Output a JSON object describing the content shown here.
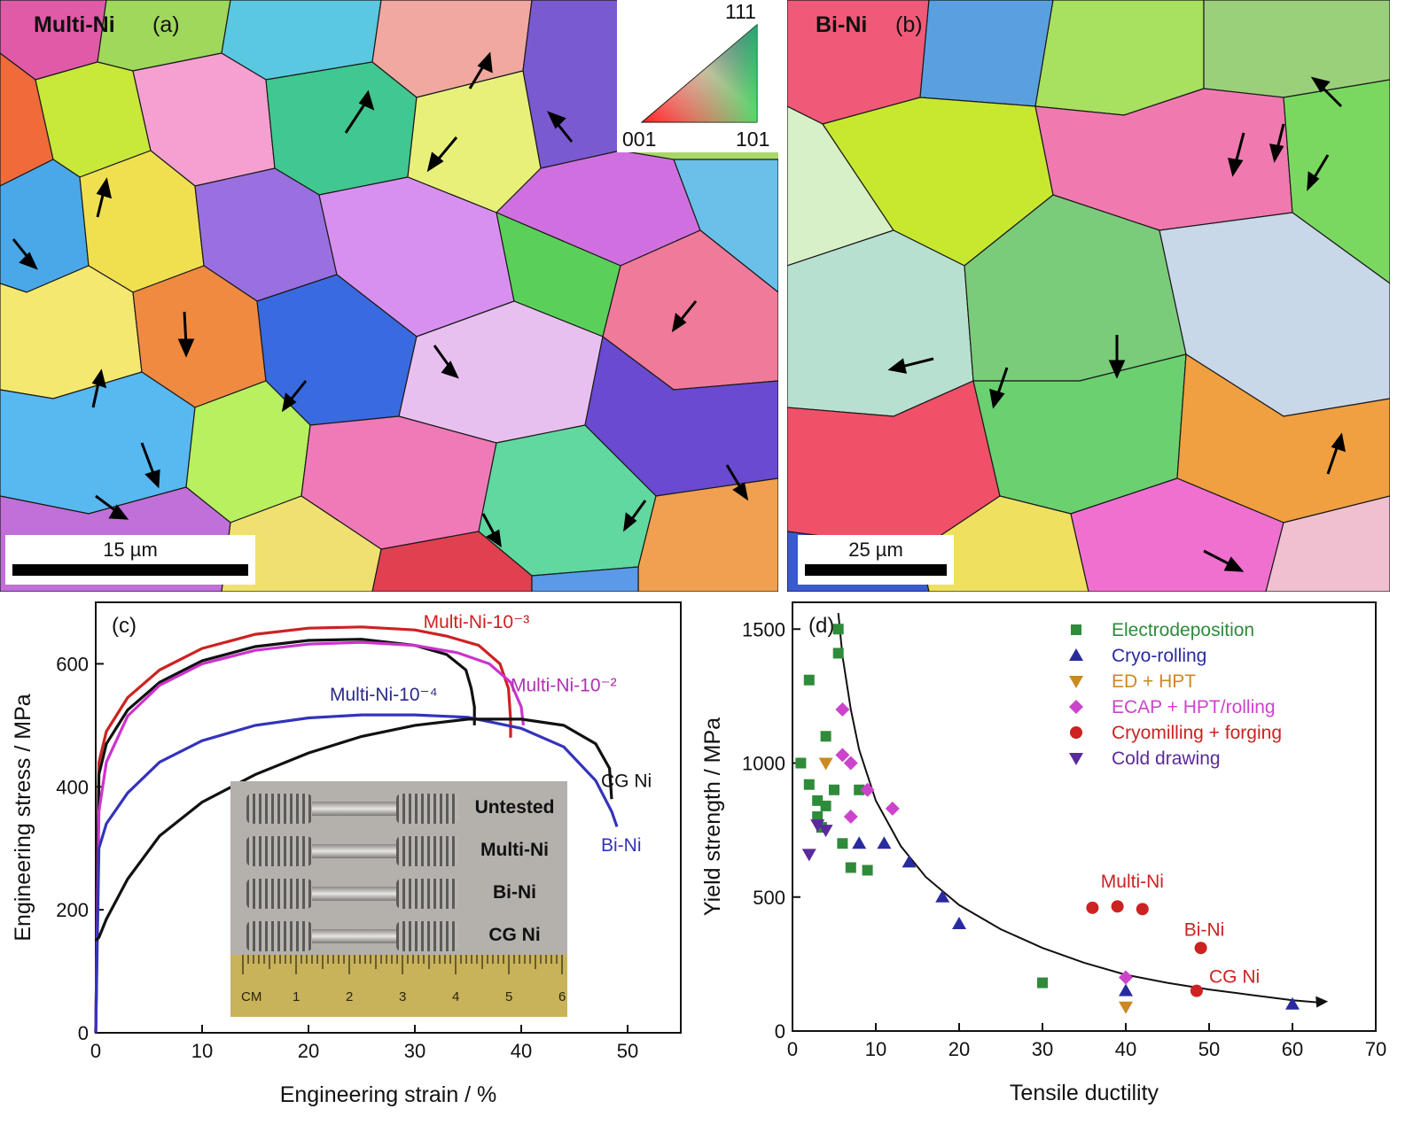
{
  "panel_a": {
    "sample": "Multi-Ni",
    "letter": "(a)",
    "scale": "15 µm",
    "ipf_key": {
      "top": "111",
      "left": "001",
      "right": "101"
    }
  },
  "panel_b": {
    "sample": "Bi-Ni",
    "letter": "(b)",
    "scale": "25 µm"
  },
  "chart_data": [
    {
      "type": "line",
      "panel_label": "(c)",
      "xlabel": "Engineering strain / %",
      "ylabel": "Engineering stress / MPa",
      "xlim": [
        0,
        55
      ],
      "ylim": [
        0,
        700
      ],
      "xticks": [
        0,
        10,
        20,
        30,
        40,
        50
      ],
      "yticks": [
        0,
        200,
        400,
        600
      ],
      "series": [
        {
          "name": "Multi-Ni-10⁻³",
          "color": "#cc2222",
          "points": [
            [
              0,
              0
            ],
            [
              0.3,
              440
            ],
            [
              1,
              490
            ],
            [
              3,
              545
            ],
            [
              6,
              590
            ],
            [
              10,
              625
            ],
            [
              15,
              648
            ],
            [
              20,
              658
            ],
            [
              25,
              660
            ],
            [
              30,
              655
            ],
            [
              33,
              645
            ],
            [
              36,
              630
            ],
            [
              38,
              600
            ],
            [
              38.8,
              560
            ],
            [
              39,
              510
            ],
            [
              39,
              480
            ]
          ]
        },
        {
          "name": "Multi-Ni-10⁻⁴",
          "color": "#111111",
          "points": [
            [
              0,
              0
            ],
            [
              0.3,
              420
            ],
            [
              1,
              470
            ],
            [
              3,
              525
            ],
            [
              6,
              570
            ],
            [
              10,
              605
            ],
            [
              15,
              628
            ],
            [
              20,
              638
            ],
            [
              25,
              640
            ],
            [
              30,
              630
            ],
            [
              33,
              615
            ],
            [
              34.8,
              590
            ],
            [
              35.3,
              560
            ],
            [
              35.6,
              530
            ],
            [
              35.6,
              500
            ]
          ]
        },
        {
          "name": "Multi-Ni-10⁻²",
          "color": "#cc33cc",
          "points": [
            [
              0,
              0
            ],
            [
              0.3,
              360
            ],
            [
              1,
              440
            ],
            [
              3,
              515
            ],
            [
              6,
              565
            ],
            [
              10,
              600
            ],
            [
              15,
              622
            ],
            [
              20,
              632
            ],
            [
              25,
              635
            ],
            [
              30,
              630
            ],
            [
              34,
              618
            ],
            [
              37,
              600
            ],
            [
              39,
              570
            ],
            [
              40,
              530
            ],
            [
              40.2,
              500
            ]
          ]
        },
        {
          "name": "Bi-Ni",
          "color": "#3333bb",
          "points": [
            [
              0,
              0
            ],
            [
              0.3,
              300
            ],
            [
              1,
              340
            ],
            [
              3,
              390
            ],
            [
              6,
              440
            ],
            [
              10,
              475
            ],
            [
              15,
              500
            ],
            [
              20,
              512
            ],
            [
              25,
              517
            ],
            [
              30,
              517
            ],
            [
              35,
              513
            ],
            [
              40,
              495
            ],
            [
              44,
              465
            ],
            [
              47,
              410
            ],
            [
              48.5,
              360
            ],
            [
              49,
              335
            ]
          ]
        },
        {
          "name": "CG Ni",
          "color": "#111111",
          "points": [
            [
              0,
              150
            ],
            [
              0.3,
              155
            ],
            [
              1,
              185
            ],
            [
              3,
              250
            ],
            [
              6,
              320
            ],
            [
              10,
              375
            ],
            [
              15,
              420
            ],
            [
              20,
              455
            ],
            [
              25,
              482
            ],
            [
              30,
              500
            ],
            [
              35,
              510
            ],
            [
              40,
              510
            ],
            [
              44,
              500
            ],
            [
              47,
              470
            ],
            [
              48.3,
              430
            ],
            [
              48.5,
              380
            ]
          ]
        }
      ],
      "labels": [
        {
          "text": "Multi-Ni-10⁻³",
          "color": "#cc2222",
          "at": [
            30.8,
            658
          ]
        },
        {
          "text": "Multi-Ni-10⁻⁴",
          "color": "#2a2a88",
          "at": [
            22,
            540
          ]
        },
        {
          "text": "Multi-Ni-10⁻²",
          "color": "#b030b0",
          "at": [
            39,
            555
          ]
        },
        {
          "text": "CG Ni",
          "color": "#111111",
          "at": [
            47.5,
            400
          ]
        },
        {
          "text": "Bi-Ni",
          "color": "#3333bb",
          "at": [
            47.5,
            295
          ]
        }
      ],
      "inset_photo": {
        "rows": [
          "Untested",
          "Multi-Ni",
          "Bi-Ni",
          "CG Ni"
        ],
        "ruler": [
          "CM",
          "1",
          "2",
          "3",
          "4",
          "5",
          "6"
        ]
      }
    },
    {
      "type": "scatter",
      "panel_label": "(d)",
      "xlabel": "Tensile ductility",
      "ylabel": "Yield strength / MPa",
      "xlim": [
        0,
        70
      ],
      "ylim": [
        0,
        1600
      ],
      "xticks": [
        0,
        10,
        20,
        30,
        40,
        50,
        60,
        70
      ],
      "yticks": [
        0,
        500,
        1000,
        1500
      ],
      "legend_position": "top-right",
      "series": [
        {
          "name": "Electrodeposition",
          "marker": "square",
          "color": "#2e8b3a",
          "points": [
            [
              5.5,
              1500
            ],
            [
              5.5,
              1410
            ],
            [
              2,
              1310
            ],
            [
              4,
              1100
            ],
            [
              1,
              1000
            ],
            [
              2,
              920
            ],
            [
              5,
              900
            ],
            [
              3,
              860
            ],
            [
              4,
              840
            ],
            [
              3,
              800
            ],
            [
              3.5,
              760
            ],
            [
              8,
              900
            ],
            [
              6,
              700
            ],
            [
              7,
              610
            ],
            [
              9,
              600
            ],
            [
              30,
              180
            ]
          ]
        },
        {
          "name": "Cryo-rolling",
          "marker": "triangle-up",
          "color": "#2a2aa0",
          "points": [
            [
              8,
              700
            ],
            [
              11,
              700
            ],
            [
              14,
              630
            ],
            [
              18,
              500
            ],
            [
              20,
              400
            ],
            [
              40,
              150
            ],
            [
              60,
              100
            ]
          ]
        },
        {
          "name": "ED + HPT",
          "marker": "triangle-down",
          "color": "#cc8822",
          "points": [
            [
              4,
              1000
            ],
            [
              40,
              90
            ]
          ]
        },
        {
          "name": "ECAP + HPT/rolling",
          "marker": "diamond",
          "color": "#cc44cc",
          "points": [
            [
              6,
              1200
            ],
            [
              6,
              1030
            ],
            [
              7,
              1000
            ],
            [
              9,
              900
            ],
            [
              12,
              830
            ],
            [
              7,
              800
            ],
            [
              40,
              200
            ]
          ]
        },
        {
          "name": "Cryomilling + forging",
          "marker": "circle",
          "color": "#cc2222",
          "points": [
            [
              36,
              460
            ],
            [
              39,
              465
            ],
            [
              42,
              455
            ],
            [
              49,
              310
            ],
            [
              48.5,
              150
            ]
          ]
        },
        {
          "name": "Cold drawing",
          "marker": "triangle-down",
          "color": "#5a2a9a",
          "points": [
            [
              3,
              770
            ],
            [
              4,
              750
            ],
            [
              2,
              660
            ]
          ]
        }
      ],
      "trend_curve": [
        [
          5.5,
          1560
        ],
        [
          6,
          1400
        ],
        [
          7,
          1200
        ],
        [
          8,
          1050
        ],
        [
          10,
          860
        ],
        [
          13,
          690
        ],
        [
          16,
          575
        ],
        [
          20,
          470
        ],
        [
          25,
          380
        ],
        [
          30,
          310
        ],
        [
          35,
          255
        ],
        [
          40,
          210
        ],
        [
          45,
          180
        ],
        [
          50,
          155
        ],
        [
          55,
          135
        ],
        [
          60,
          115
        ],
        [
          63,
          107
        ]
      ],
      "annotations": [
        {
          "text": "Multi-Ni",
          "color": "#cc2222",
          "at": [
            37,
            535
          ]
        },
        {
          "text": "Bi-Ni",
          "color": "#cc2222",
          "at": [
            47,
            355
          ]
        },
        {
          "text": "CG Ni",
          "color": "#cc2222",
          "at": [
            50,
            180
          ]
        }
      ]
    }
  ]
}
